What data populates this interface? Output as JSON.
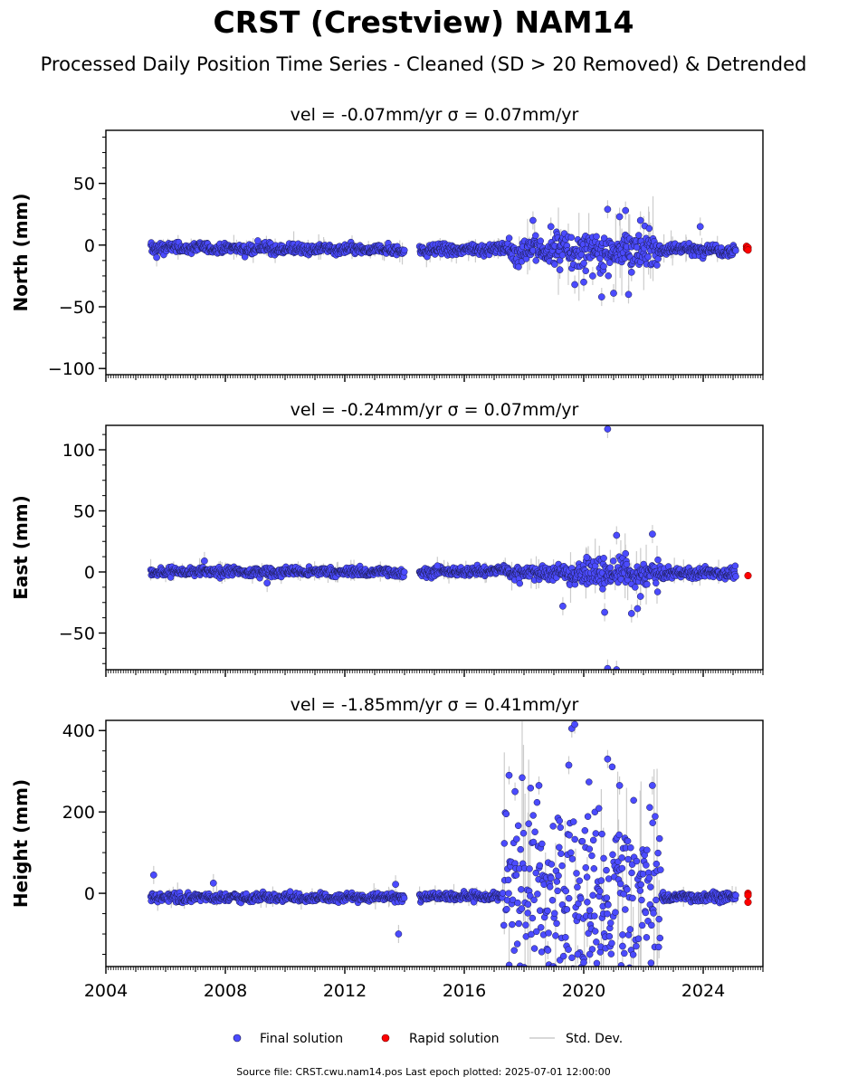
{
  "figure": {
    "title": "CRST (Crestview) NAM14",
    "subtitle": "Processed Daily Position Time Series - Cleaned (SD > 20 Removed) & Detrended",
    "source_note": "Source file: CRST.cwu.nam14.pos  Last epoch plotted: 2025-07-01 12:00:00"
  },
  "legend": {
    "final_label": "Final solution",
    "rapid_label": "Rapid solution",
    "std_label": "Std. Dev."
  },
  "colors": {
    "final": "#4b4bff",
    "final_edge": "#1a1a4a",
    "rapid": "#ff0000",
    "std": "#cccccc"
  },
  "chart_data": [
    {
      "type": "scatter",
      "panel_title": "vel = -0.07mm/yr   σ = 0.07mm/yr",
      "ylabel": "North (mm)",
      "xlim": [
        2004.0,
        2026.0
      ],
      "ylim": [
        -105,
        93
      ],
      "yticks": [
        -100,
        -50,
        0,
        50
      ],
      "xticks": [
        2004,
        2008,
        2012,
        2016,
        2020,
        2024
      ],
      "show_xticklabels": false,
      "segments": [
        {
          "x": [
            2005.5,
            2014.0
          ],
          "center": [
            -2,
            -4
          ],
          "scatter": 3.5
        },
        {
          "x": [
            2014.5,
            2017.5
          ],
          "center": [
            -4,
            -3
          ],
          "scatter": 3.5
        },
        {
          "x": [
            2017.5,
            2019.0
          ],
          "center": [
            -5,
            -4
          ],
          "scatter": 8
        },
        {
          "x": [
            2019.0,
            2022.5
          ],
          "center": [
            -4,
            -4
          ],
          "scatter": 12
        },
        {
          "x": [
            2022.5,
            2025.1
          ],
          "center": [
            -3,
            -4
          ],
          "scatter": 4
        }
      ],
      "outliers": [
        [
          2005.7,
          -10
        ],
        [
          2018.3,
          20
        ],
        [
          2018.9,
          15
        ],
        [
          2019.7,
          -32
        ],
        [
          2020.0,
          -30
        ],
        [
          2020.6,
          -42
        ],
        [
          2020.8,
          29
        ],
        [
          2021.0,
          -39
        ],
        [
          2021.2,
          23
        ],
        [
          2021.4,
          28
        ],
        [
          2021.5,
          -40
        ],
        [
          2021.9,
          20
        ],
        [
          2021.6,
          -22
        ],
        [
          2020.3,
          -25
        ],
        [
          2019.2,
          -20
        ],
        [
          2023.9,
          15
        ]
      ],
      "rapid": [
        [
          2025.45,
          -1
        ],
        [
          2025.45,
          -3
        ],
        [
          2025.5,
          -2
        ],
        [
          2025.5,
          -4
        ]
      ]
    },
    {
      "type": "scatter",
      "panel_title": "vel = -0.24mm/yr   σ = 0.07mm/yr",
      "ylabel": "East (mm)",
      "xlim": [
        2004.0,
        2026.0
      ],
      "ylim": [
        -80,
        120
      ],
      "yticks": [
        -50,
        0,
        50,
        100
      ],
      "xticks": [
        2004,
        2008,
        2012,
        2016,
        2020,
        2024
      ],
      "show_xticklabels": false,
      "segments": [
        {
          "x": [
            2005.5,
            2014.0
          ],
          "center": [
            0,
            0
          ],
          "scatter": 3
        },
        {
          "x": [
            2014.5,
            2017.5
          ],
          "center": [
            0,
            1
          ],
          "scatter": 3
        },
        {
          "x": [
            2017.5,
            2019.5
          ],
          "center": [
            0,
            -1
          ],
          "scatter": 5
        },
        {
          "x": [
            2019.5,
            2022.5
          ],
          "center": [
            -1,
            -2
          ],
          "scatter": 9
        },
        {
          "x": [
            2022.5,
            2025.1
          ],
          "center": [
            -1,
            -1
          ],
          "scatter": 3.5
        }
      ],
      "outliers": [
        [
          2020.8,
          117
        ],
        [
          2020.8,
          -79
        ],
        [
          2021.1,
          -80
        ],
        [
          2021.1,
          30
        ],
        [
          2022.3,
          31
        ],
        [
          2020.7,
          -33
        ],
        [
          2019.3,
          -28
        ],
        [
          2021.6,
          -34
        ],
        [
          2021.8,
          -30
        ],
        [
          2021.9,
          -20
        ],
        [
          2021.4,
          15
        ],
        [
          2020.1,
          12
        ],
        [
          2007.3,
          9
        ],
        [
          2009.4,
          -9
        ],
        [
          2015.1,
          5
        ]
      ],
      "rapid": [
        [
          2025.5,
          -3
        ]
      ]
    },
    {
      "type": "scatter",
      "panel_title": "vel = -1.85mm/yr   σ = 0.41mm/yr",
      "ylabel": "Height (mm)",
      "xlim": [
        2004.0,
        2026.0
      ],
      "ylim": [
        -180,
        425
      ],
      "yticks": [
        0,
        200,
        400
      ],
      "xticks": [
        2004,
        2008,
        2012,
        2016,
        2020,
        2024
      ],
      "xticklabels": [
        "2004",
        "2008",
        "2012",
        "2016",
        "2020",
        "2024"
      ],
      "show_xticklabels": true,
      "segments": [
        {
          "x": [
            2005.5,
            2014.0
          ],
          "center": [
            -10,
            -10
          ],
          "scatter": 9
        },
        {
          "x": [
            2014.5,
            2017.3
          ],
          "center": [
            -5,
            -10
          ],
          "scatter": 9
        },
        {
          "x": [
            2017.3,
            2022.6
          ],
          "center": [
            -10,
            -10
          ],
          "scatter": 90
        },
        {
          "x": [
            2022.6,
            2025.1
          ],
          "center": [
            -10,
            -8
          ],
          "scatter": 9
        }
      ],
      "outliers": [
        [
          2013.8,
          -100
        ],
        [
          2019.6,
          405
        ],
        [
          2019.7,
          415
        ],
        [
          2020.8,
          330
        ],
        [
          2019.5,
          315
        ],
        [
          2017.5,
          290
        ],
        [
          2017.7,
          250
        ],
        [
          2018.5,
          265
        ],
        [
          2021.2,
          265
        ],
        [
          2022.3,
          265
        ],
        [
          2019.8,
          -150
        ],
        [
          2020.0,
          -170
        ],
        [
          2020.2,
          -150
        ],
        [
          2018.8,
          -140
        ],
        [
          2021.3,
          -130
        ],
        [
          2005.6,
          45
        ],
        [
          2007.6,
          25
        ],
        [
          2013.7,
          22
        ]
      ],
      "rapid": [
        [
          2025.5,
          0
        ],
        [
          2025.5,
          -5
        ],
        [
          2025.5,
          -22
        ]
      ]
    }
  ]
}
